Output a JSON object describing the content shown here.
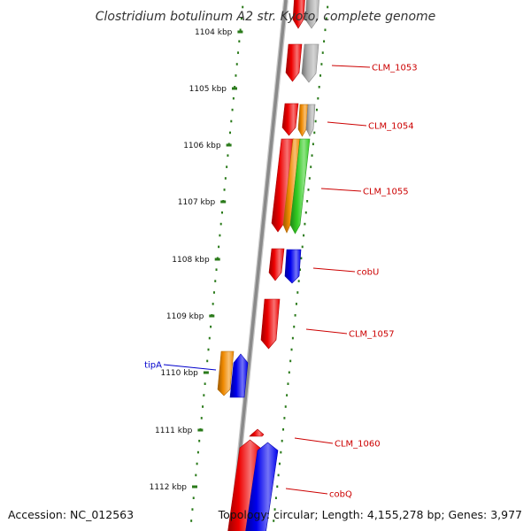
{
  "title": "Clostridium botulinum A2 str. Kyoto, complete genome",
  "accession": "Accession: NC_012563",
  "stats": "Topology: circular; Length: 4,155,278 bp; Genes: 3,977",
  "colors": {
    "backbone": "#8a8a8a",
    "tick": "#2a7a1a",
    "label_red": "#cc0000",
    "label_blue": "#0000cc",
    "red": "#ee0000",
    "blue": "#0000ee",
    "orange": "#f08a00",
    "green": "#33cc22",
    "grey": "#b0b0b0"
  },
  "kbp_labels": [
    "1104 kbp",
    "1105 kbp",
    "1106 kbp",
    "1107 kbp",
    "1108 kbp",
    "1109 kbp",
    "1110 kbp",
    "1111 kbp",
    "1112 kbp"
  ],
  "gene_labels": [
    {
      "text": "CLM_1053",
      "color": "red"
    },
    {
      "text": "CLM_1054",
      "color": "red"
    },
    {
      "text": "CLM_1055",
      "color": "red"
    },
    {
      "text": "cobU",
      "color": "red"
    },
    {
      "text": "CLM_1057",
      "color": "red"
    },
    {
      "text": "tipA",
      "color": "blue"
    },
    {
      "text": "CLM_1060",
      "color": "red"
    },
    {
      "text": "cobQ",
      "color": "red"
    }
  ],
  "features": [
    {
      "color": "red",
      "strand": "down"
    },
    {
      "color": "grey",
      "strand": "down"
    },
    {
      "color": "red",
      "strand": "down"
    },
    {
      "color": "grey",
      "strand": "down"
    },
    {
      "color": "red",
      "strand": "down"
    },
    {
      "color": "orange",
      "strand": "down"
    },
    {
      "color": "grey",
      "strand": "down"
    },
    {
      "color": "red",
      "strand": "down"
    },
    {
      "color": "orange",
      "strand": "down"
    },
    {
      "color": "green",
      "strand": "down"
    },
    {
      "color": "red",
      "strand": "down"
    },
    {
      "color": "blue",
      "strand": "down"
    },
    {
      "color": "red",
      "strand": "down"
    },
    {
      "color": "orange",
      "strand": "down"
    },
    {
      "color": "blue",
      "strand": "up"
    },
    {
      "color": "red",
      "strand": "up"
    },
    {
      "color": "red",
      "strand": "up"
    },
    {
      "color": "blue",
      "strand": "up"
    }
  ]
}
